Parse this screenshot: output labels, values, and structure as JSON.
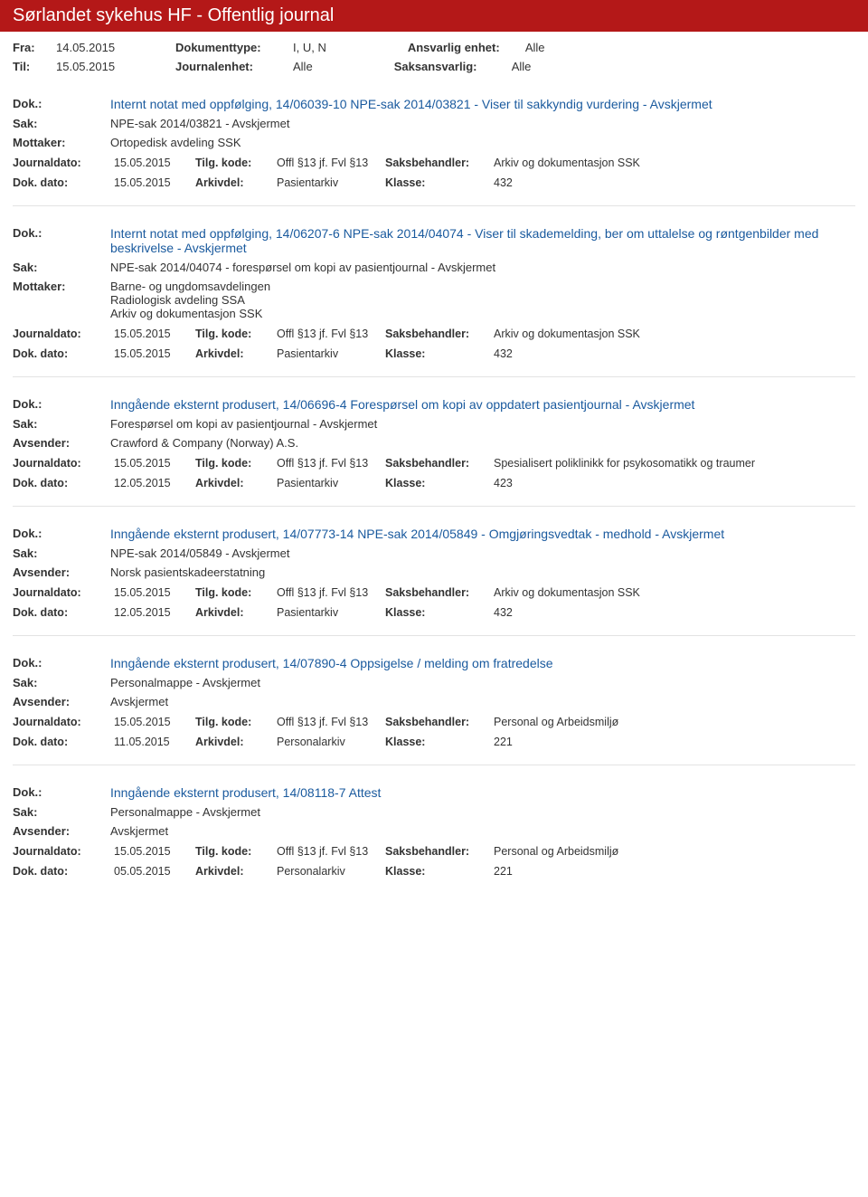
{
  "header": {
    "title": "Sørlandet sykehus HF - Offentlig journal"
  },
  "meta": {
    "fra_label": "Fra:",
    "fra_val": "14.05.2015",
    "til_label": "Til:",
    "til_val": "15.05.2015",
    "doktype_label": "Dokumenttype:",
    "doktype_val": "I, U, N",
    "journalenhet_label": "Journalenhet:",
    "journalenhet_val": "Alle",
    "ansvarlig_label": "Ansvarlig enhet:",
    "ansvarlig_val": "Alle",
    "saksansvarlig_label": "Saksansvarlig:",
    "saksansvarlig_val": "Alle"
  },
  "labels": {
    "dok": "Dok.:",
    "sak": "Sak:",
    "mottaker": "Mottaker:",
    "avsender": "Avsender:",
    "journaldato": "Journaldato:",
    "tilgkode": "Tilg. kode:",
    "saksbehandler": "Saksbehandler:",
    "dokdato": "Dok. dato:",
    "arkivdel": "Arkivdel:",
    "klasse": "Klasse:"
  },
  "entries": [
    {
      "title": "Internt notat med oppfølging, 14/06039-10 NPE-sak 2014/03821 - Viser til sakkyndig vurdering - Avskjermet",
      "sak": "NPE-sak 2014/03821 - Avskjermet",
      "party_label": "Mottaker:",
      "party": "Ortopedisk avdeling SSK",
      "journaldato": "15.05.2015",
      "tilgkode": "Offl §13 jf. Fvl §13",
      "saksbehandler": "Arkiv og dokumentasjon SSK",
      "dokdato": "15.05.2015",
      "arkivdel": "Pasientarkiv",
      "klasse": "432"
    },
    {
      "title": "Internt notat med oppfølging, 14/06207-6 NPE-sak 2014/04074 - Viser til skademelding, ber om uttalelse og røntgenbilder med beskrivelse - Avskjermet",
      "sak": "NPE-sak 2014/04074 - forespørsel om kopi av pasientjournal - Avskjermet",
      "party_label": "Mottaker:",
      "party": "Barne- og ungdomsavdelingen\nRadiologisk avdeling SSA\nArkiv og dokumentasjon SSK",
      "journaldato": "15.05.2015",
      "tilgkode": "Offl §13 jf. Fvl §13",
      "saksbehandler": "Arkiv og dokumentasjon SSK",
      "dokdato": "15.05.2015",
      "arkivdel": "Pasientarkiv",
      "klasse": "432"
    },
    {
      "title": "Inngående eksternt produsert, 14/06696-4 Forespørsel om kopi av oppdatert pasientjournal - Avskjermet",
      "sak": "Forespørsel om kopi av pasientjournal - Avskjermet",
      "party_label": "Avsender:",
      "party": "Crawford & Company (Norway) A.S.",
      "journaldato": "15.05.2015",
      "tilgkode": "Offl §13 jf. Fvl §13",
      "saksbehandler": "Spesialisert poliklinikk for psykosomatikk og traumer",
      "dokdato": "12.05.2015",
      "arkivdel": "Pasientarkiv",
      "klasse": "423"
    },
    {
      "title": "Inngående eksternt produsert, 14/07773-14 NPE-sak 2014/05849 - Omgjøringsvedtak - medhold - Avskjermet",
      "sak": "NPE-sak 2014/05849 - Avskjermet",
      "party_label": "Avsender:",
      "party": "Norsk pasientskadeerstatning",
      "journaldato": "15.05.2015",
      "tilgkode": "Offl §13 jf. Fvl §13",
      "saksbehandler": "Arkiv og dokumentasjon SSK",
      "dokdato": "12.05.2015",
      "arkivdel": "Pasientarkiv",
      "klasse": "432"
    },
    {
      "title": "Inngående eksternt produsert, 14/07890-4 Oppsigelse / melding om fratredelse",
      "sak": "Personalmappe - Avskjermet",
      "party_label": "Avsender:",
      "party": "Avskjermet",
      "journaldato": "15.05.2015",
      "tilgkode": "Offl §13 jf. Fvl §13",
      "saksbehandler": "Personal og Arbeidsmiljø",
      "dokdato": "11.05.2015",
      "arkivdel": "Personalarkiv",
      "klasse": "221"
    },
    {
      "title": "Inngående eksternt produsert, 14/08118-7 Attest",
      "sak": "Personalmappe - Avskjermet",
      "party_label": "Avsender:",
      "party": "Avskjermet",
      "journaldato": "15.05.2015",
      "tilgkode": "Offl §13 jf. Fvl §13",
      "saksbehandler": "Personal og Arbeidsmiljø",
      "dokdato": "05.05.2015",
      "arkivdel": "Personalarkiv",
      "klasse": "221"
    }
  ]
}
